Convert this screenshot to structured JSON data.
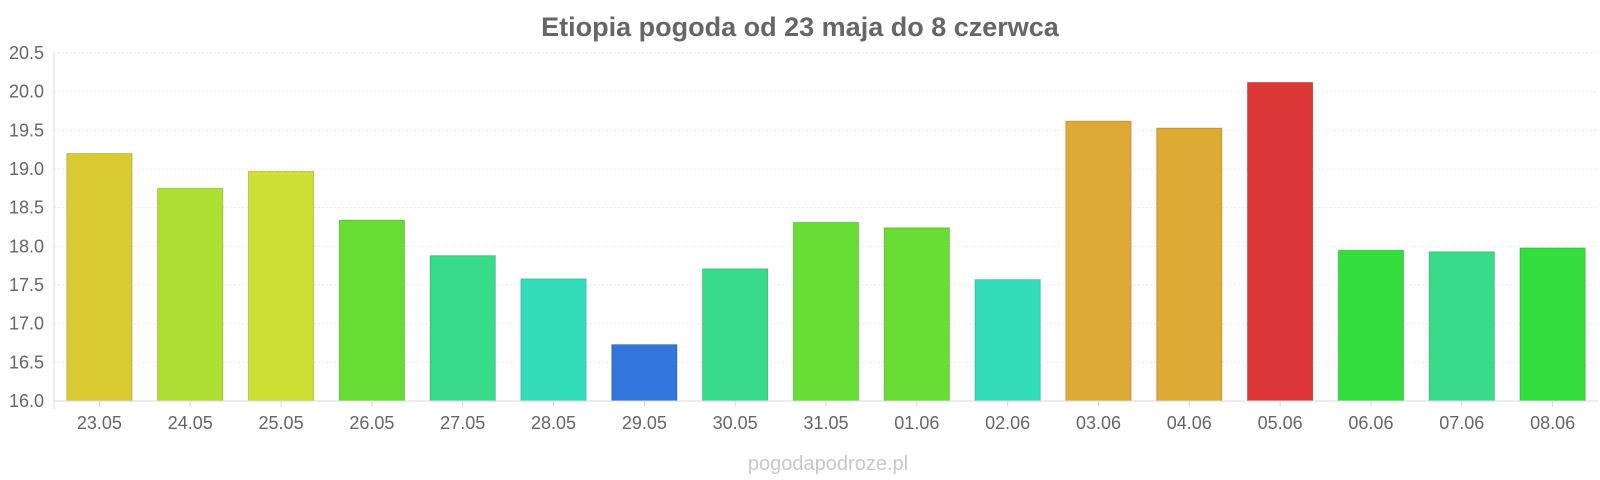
{
  "chart_data": {
    "type": "bar",
    "title": "Etiopia pogoda od 23 maja do 8 czerwca",
    "xlabel": "",
    "ylabel": "",
    "categories": [
      "23.05",
      "24.05",
      "25.05",
      "26.05",
      "27.05",
      "28.05",
      "29.05",
      "30.05",
      "31.05",
      "01.06",
      "02.06",
      "03.06",
      "04.06",
      "05.06",
      "06.06",
      "07.06",
      "08.06"
    ],
    "values": [
      19.2,
      18.75,
      18.97,
      18.34,
      17.88,
      17.58,
      16.73,
      17.71,
      18.31,
      18.24,
      17.57,
      19.62,
      19.53,
      20.12,
      17.95,
      17.93,
      17.98
    ],
    "colors": [
      "#dbcb33",
      "#addf32",
      "#cddf32",
      "#68dd36",
      "#37db8a",
      "#33ddb9",
      "#3377dd",
      "#37db8a",
      "#68dd36",
      "#68dd36",
      "#33ddb9",
      "#ddaa33",
      "#ddaa33",
      "#dd3636",
      "#33dd3d",
      "#37db8a",
      "#33dd3d"
    ],
    "yticks": [
      "16.0",
      "16.5",
      "17.0",
      "17.5",
      "18.0",
      "18.5",
      "19.0",
      "19.5",
      "20.0",
      "20.5"
    ],
    "ylim": [
      16.0,
      20.5
    ],
    "grid": true,
    "legend": "none"
  },
  "watermark": "pogodapodroze.pl"
}
